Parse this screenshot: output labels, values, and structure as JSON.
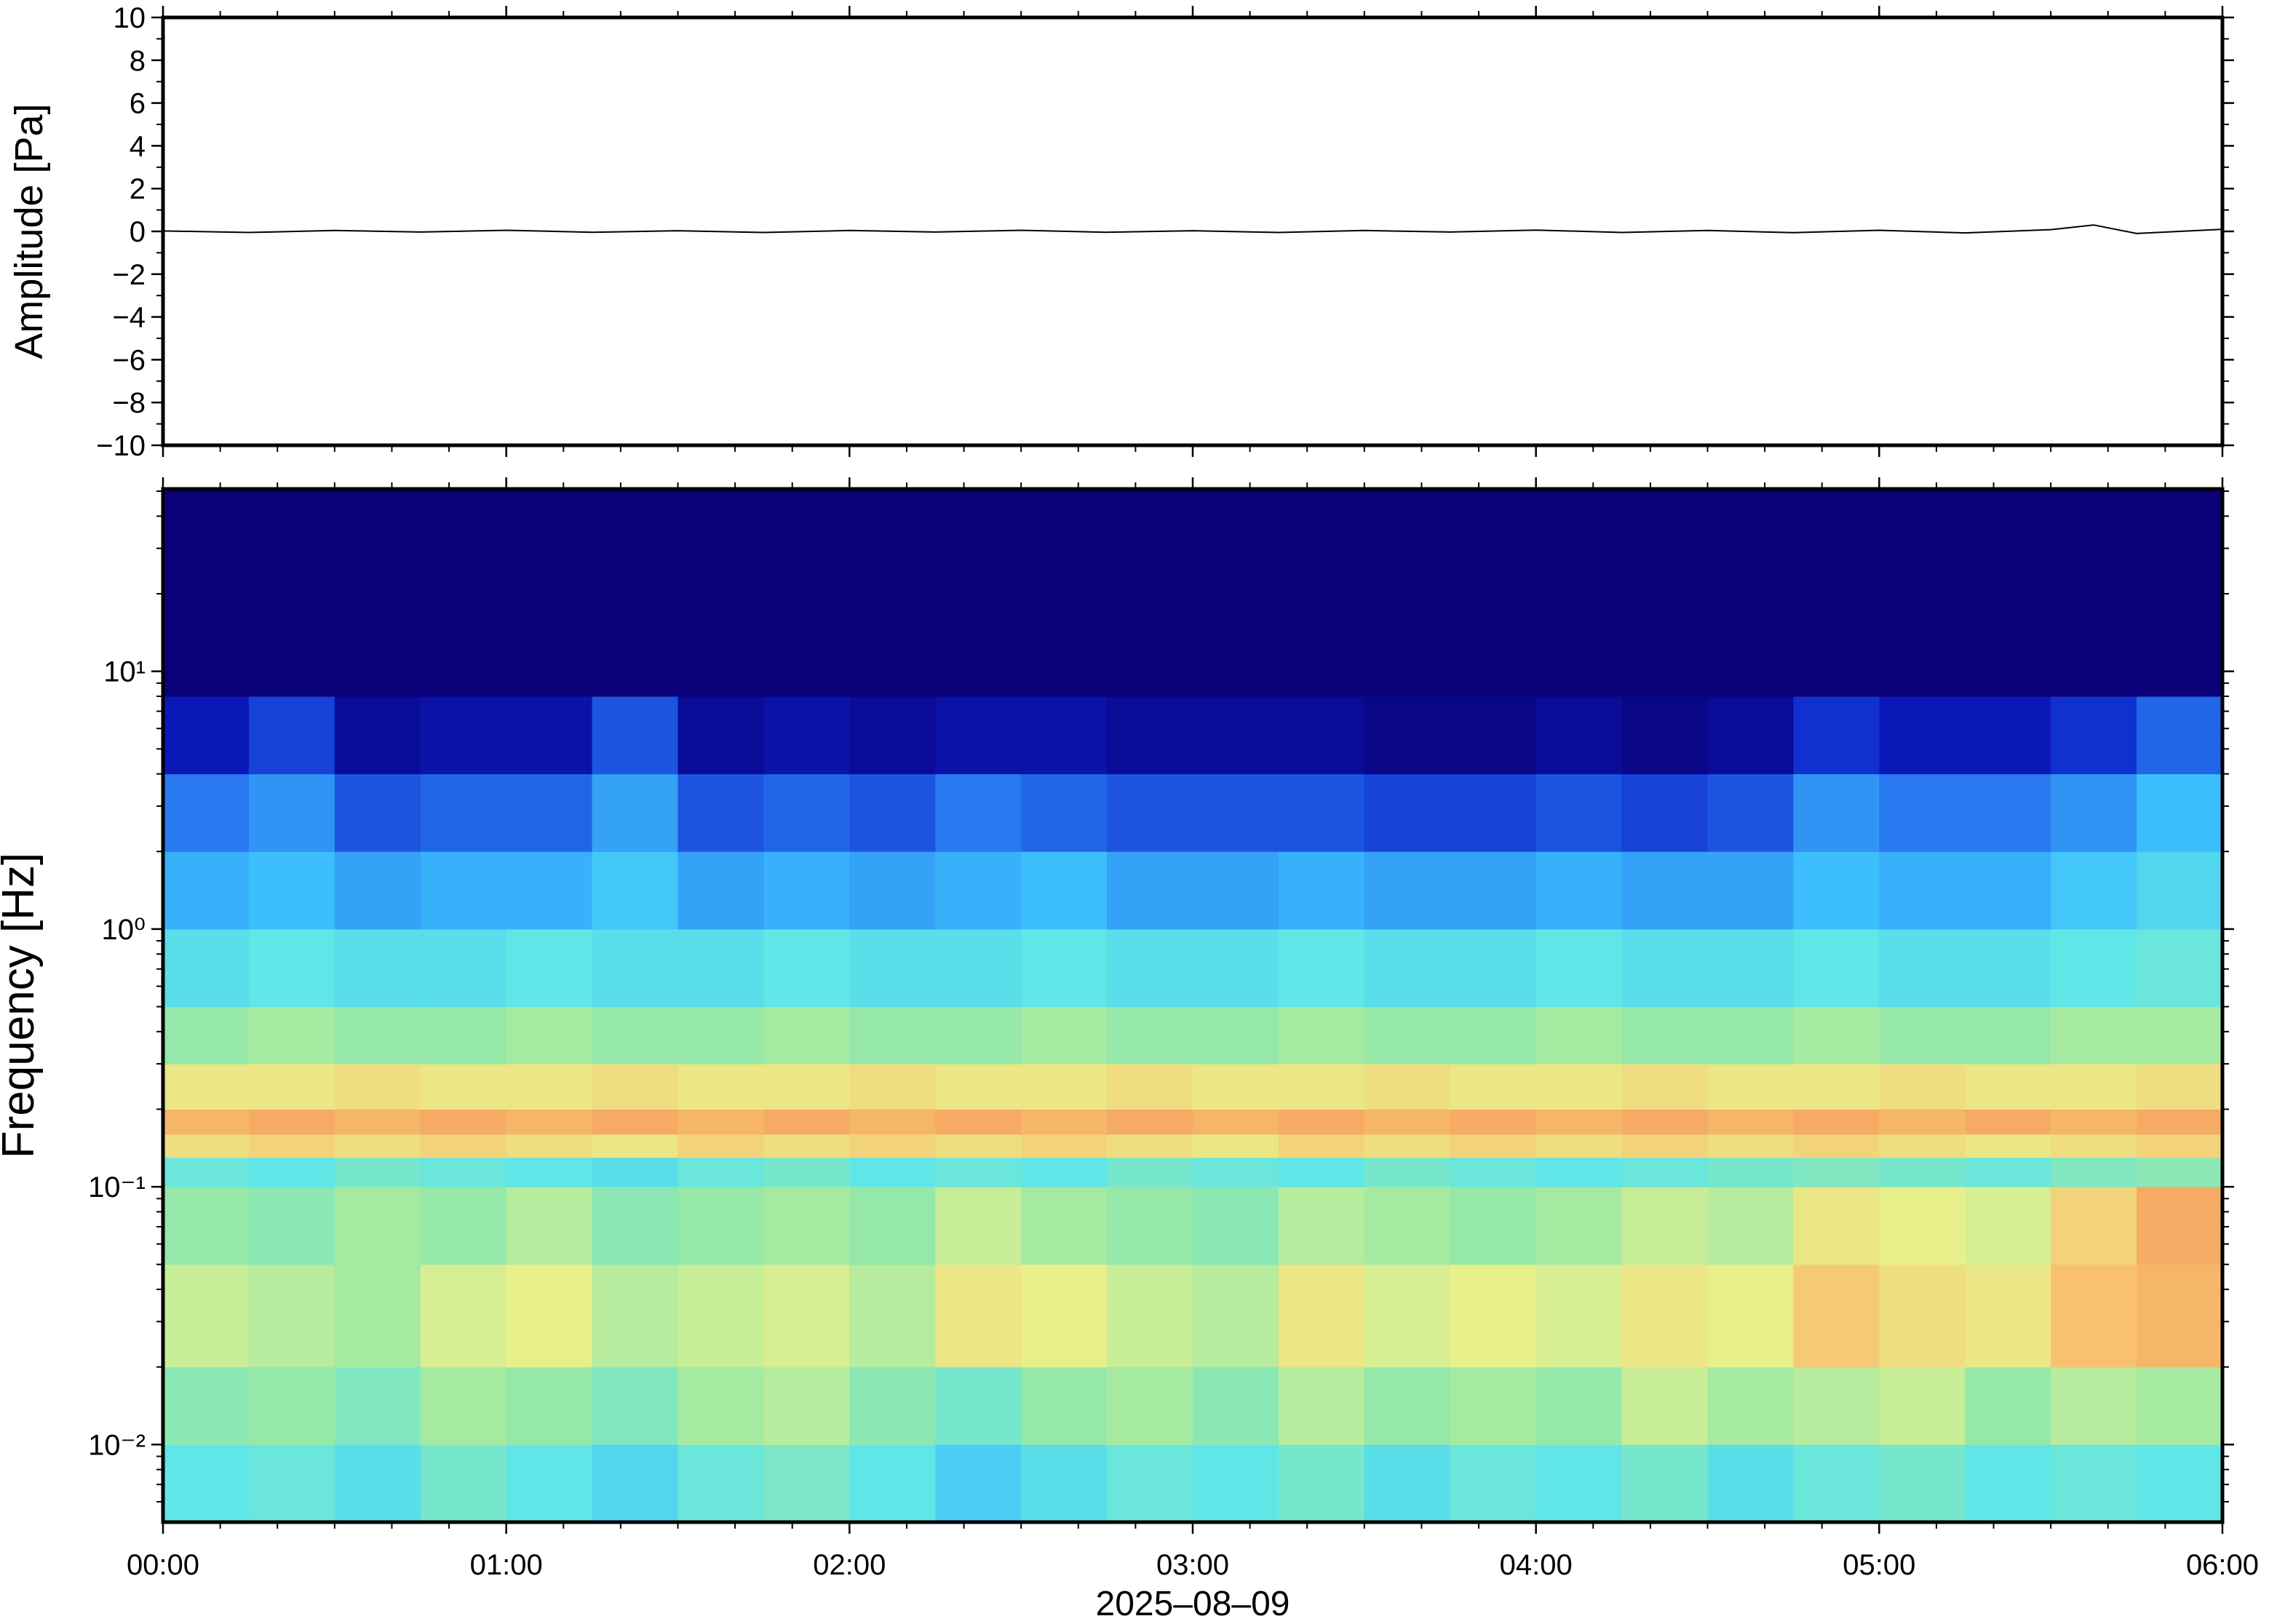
{
  "chart_data": [
    {
      "type": "line",
      "ylabel": "Amplitude [Pa]",
      "color": "#000000",
      "xlim": [
        0,
        6
      ],
      "xticks": [
        {
          "value": 0,
          "label": "00:00"
        },
        {
          "value": 1,
          "label": "01:00"
        },
        {
          "value": 2,
          "label": "02:00"
        },
        {
          "value": 3,
          "label": "03:00"
        },
        {
          "value": 4,
          "label": "04:00"
        },
        {
          "value": 5,
          "label": "05:00"
        },
        {
          "value": 6,
          "label": "06:00"
        }
      ],
      "ylim": [
        -10,
        10
      ],
      "yticks": [
        10,
        8,
        6,
        4,
        2,
        0,
        {
          "value": -2,
          "label": "−2"
        },
        {
          "value": -4,
          "label": "−4"
        },
        {
          "value": -6,
          "label": "−6"
        },
        {
          "value": -8,
          "label": "−8"
        },
        {
          "value": -10,
          "label": "−10"
        }
      ],
      "x": [
        0,
        0.25,
        0.5,
        0.75,
        1,
        1.25,
        1.5,
        1.75,
        2,
        2.25,
        2.5,
        2.75,
        3,
        3.25,
        3.5,
        3.75,
        4,
        4.25,
        4.5,
        4.75,
        5,
        5.25,
        5.5,
        5.625,
        5.75,
        6
      ],
      "values": [
        0.02,
        -0.05,
        0.04,
        -0.03,
        0.05,
        -0.04,
        0.03,
        -0.05,
        0.04,
        -0.03,
        0.05,
        -0.04,
        0.03,
        -0.05,
        0.04,
        -0.03,
        0.06,
        -0.05,
        0.04,
        -0.06,
        0.05,
        -0.07,
        0.08,
        0.3,
        -0.1,
        0.1
      ]
    },
    {
      "type": "heatmap",
      "ylabel": "Frequency [Hz]",
      "xlabel": "2025–08–09",
      "log_y": true,
      "colormap": [
        "#0a0078",
        "#0a1ec8",
        "#2878f0",
        "#3cbefc",
        "#60e6e6",
        "#96e8a8",
        "#e8f08c",
        "#f8c070",
        "#f08c50",
        "#d83c28"
      ],
      "color_range": [
        0,
        90
      ],
      "xlim": [
        0,
        6
      ],
      "xticks": [
        {
          "value": 0,
          "label": "00:00"
        },
        {
          "value": 1,
          "label": "01:00"
        },
        {
          "value": 2,
          "label": "02:00"
        },
        {
          "value": 3,
          "label": "03:00"
        },
        {
          "value": 4,
          "label": "04:00"
        },
        {
          "value": 5,
          "label": "05:00"
        },
        {
          "value": 6,
          "label": "06:00"
        }
      ],
      "ylim": [
        0.005,
        51
      ],
      "yticks": [
        {
          "value": 10,
          "label": "10¹"
        },
        {
          "value": 1,
          "label": "10⁰"
        },
        {
          "value": 0.1,
          "label": "10⁻¹"
        },
        {
          "value": 0.01,
          "label": "10⁻²"
        }
      ],
      "x": [
        0,
        0.25,
        0.5,
        0.75,
        1,
        1.25,
        1.5,
        1.75,
        2,
        2.25,
        2.5,
        2.75,
        3,
        3.25,
        3.5,
        3.75,
        4,
        4.25,
        4.5,
        4.75,
        5,
        5.25,
        5.5,
        5.75
      ],
      "y": [
        0.005,
        0.01,
        0.02,
        0.05,
        0.1,
        0.13,
        0.16,
        0.2,
        0.3,
        0.5,
        1,
        2,
        4,
        8
      ],
      "values": [
        [
          40,
          42,
          38,
          44,
          40,
          36,
          42,
          45,
          40,
          34,
          38,
          42,
          40,
          44,
          38,
          42,
          40,
          44,
          38,
          42,
          44,
          40,
          42,
          40
        ],
        [
          48,
          50,
          46,
          52,
          50,
          46,
          52,
          54,
          48,
          44,
          50,
          52,
          48,
          54,
          50,
          52,
          50,
          56,
          52,
          54,
          56,
          50,
          54,
          52
        ],
        [
          56,
          54,
          52,
          58,
          60,
          54,
          56,
          58,
          54,
          62,
          60,
          56,
          54,
          62,
          58,
          60,
          58,
          62,
          60,
          68,
          64,
          62,
          70,
          72
        ],
        [
          50,
          48,
          52,
          50,
          54,
          48,
          50,
          52,
          50,
          56,
          52,
          50,
          48,
          54,
          52,
          50,
          52,
          56,
          54,
          62,
          60,
          58,
          66,
          74
        ],
        [
          42,
          40,
          44,
          42,
          40,
          38,
          42,
          44,
          40,
          42,
          40,
          44,
          42,
          40,
          44,
          42,
          40,
          42,
          44,
          46,
          44,
          42,
          46,
          48
        ],
        [
          64,
          66,
          64,
          66,
          64,
          62,
          66,
          64,
          66,
          64,
          66,
          64,
          62,
          66,
          64,
          66,
          64,
          66,
          64,
          66,
          64,
          62,
          64,
          66
        ],
        [
          72,
          74,
          72,
          74,
          72,
          74,
          72,
          74,
          72,
          74,
          72,
          74,
          72,
          74,
          72,
          74,
          72,
          74,
          72,
          74,
          72,
          74,
          72,
          74
        ],
        [
          62,
          62,
          64,
          62,
          62,
          64,
          62,
          62,
          64,
          62,
          62,
          64,
          62,
          62,
          64,
          62,
          62,
          64,
          62,
          62,
          64,
          62,
          62,
          64
        ],
        [
          50,
          52,
          50,
          50,
          52,
          50,
          50,
          52,
          50,
          50,
          52,
          50,
          50,
          52,
          50,
          50,
          52,
          50,
          50,
          52,
          50,
          50,
          52,
          52
        ],
        [
          38,
          40,
          38,
          38,
          40,
          38,
          38,
          40,
          38,
          38,
          40,
          38,
          38,
          40,
          38,
          38,
          40,
          38,
          38,
          40,
          38,
          38,
          40,
          42
        ],
        [
          28,
          30,
          26,
          28,
          28,
          32,
          26,
          28,
          26,
          28,
          30,
          26,
          26,
          28,
          26,
          26,
          28,
          26,
          26,
          30,
          28,
          28,
          32,
          36
        ],
        [
          20,
          24,
          16,
          18,
          18,
          26,
          16,
          18,
          16,
          20,
          18,
          16,
          16,
          16,
          14,
          14,
          16,
          14,
          16,
          24,
          20,
          20,
          24,
          30
        ],
        [
          8,
          14,
          4,
          6,
          6,
          16,
          4,
          6,
          4,
          6,
          6,
          4,
          4,
          4,
          2,
          2,
          4,
          2,
          4,
          12,
          8,
          8,
          12,
          18
        ],
        [
          0,
          0,
          0,
          0,
          0,
          0,
          0,
          0,
          0,
          0,
          0,
          0,
          0,
          0,
          0,
          0,
          0,
          0,
          0,
          0,
          0,
          0,
          0,
          0
        ]
      ]
    }
  ]
}
